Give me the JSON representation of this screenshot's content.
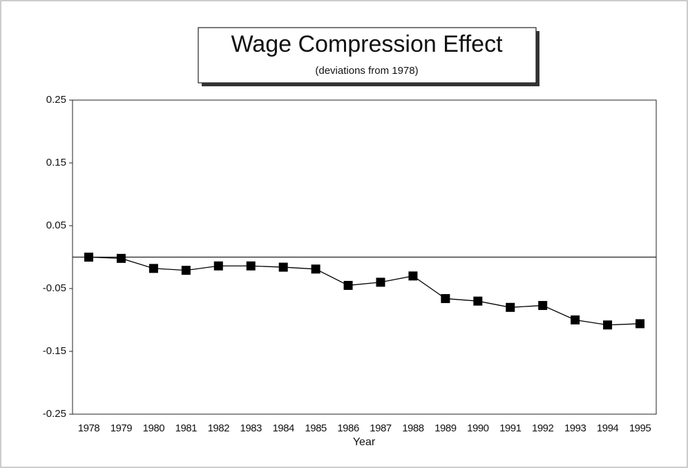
{
  "chart_data": {
    "type": "line",
    "title": "Wage Compression Effect",
    "subtitle": "(deviations from 1978)",
    "x_label": "Year",
    "categories": [
      "1978",
      "1979",
      "1980",
      "1981",
      "1982",
      "1983",
      "1984",
      "1985",
      "1986",
      "1987",
      "1988",
      "1989",
      "1990",
      "1991",
      "1992",
      "1993",
      "1994",
      "1995"
    ],
    "values": [
      0,
      -0.002,
      -0.018,
      -0.021,
      -0.014,
      -0.014,
      -0.016,
      -0.019,
      -0.045,
      -0.04,
      -0.03,
      -0.066,
      -0.07,
      -0.08,
      -0.077,
      -0.1,
      -0.108,
      -0.106
    ],
    "color": "#000000",
    "ylim": [
      -0.25,
      0.25
    ],
    "yticks": [
      0.25,
      0.15,
      0.05,
      -0.05,
      -0.15,
      -0.25
    ]
  }
}
